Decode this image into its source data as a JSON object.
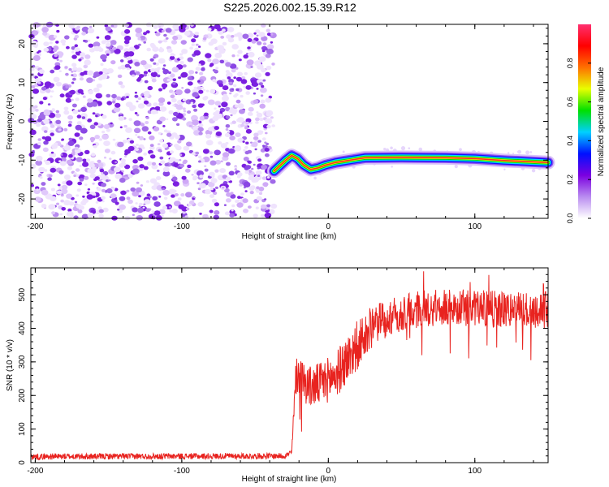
{
  "title": "S225.2026.002.15.39.R12",
  "chart_data": [
    {
      "type": "heatmap",
      "xlabel": "Height of straight line (km)",
      "ylabel": "Frequency (Hz)",
      "xlim": [
        -203,
        150
      ],
      "ylim": [
        -25,
        25
      ],
      "xticks": [
        -200,
        -100,
        0,
        100
      ],
      "yticks": [
        20,
        10,
        0,
        -10,
        -20
      ],
      "noise_region_x": [
        -203,
        -37
      ],
      "noise_amplitude_range": [
        0.0,
        0.2
      ],
      "ridge_points": [
        {
          "x": -37,
          "y": -12.8
        },
        {
          "x": -33,
          "y": -11.4
        },
        {
          "x": -29,
          "y": -10.0
        },
        {
          "x": -25,
          "y": -8.8
        },
        {
          "x": -21,
          "y": -9.6
        },
        {
          "x": -17,
          "y": -11.2
        },
        {
          "x": -12,
          "y": -12.4
        },
        {
          "x": -7,
          "y": -12.0
        },
        {
          "x": -2,
          "y": -11.3
        },
        {
          "x": 5,
          "y": -10.6
        },
        {
          "x": 15,
          "y": -10.0
        },
        {
          "x": 25,
          "y": -9.4
        },
        {
          "x": 50,
          "y": -9.3
        },
        {
          "x": 80,
          "y": -9.4
        },
        {
          "x": 100,
          "y": -9.6
        },
        {
          "x": 120,
          "y": -10.1
        },
        {
          "x": 150,
          "y": -10.6
        }
      ],
      "ridge_peak_amplitude": 0.95
    },
    {
      "type": "line",
      "xlabel": "Height of straight line (km)",
      "ylabel": "SNR (10 * v/v)",
      "xlim": [
        -203,
        150
      ],
      "ylim": [
        0,
        580
      ],
      "xticks": [
        -200,
        -100,
        0,
        100
      ],
      "yticks": [
        0,
        100,
        200,
        300,
        400,
        500
      ],
      "series_color": "#e8231f",
      "envelope": [
        {
          "x": -203,
          "y": 18
        },
        {
          "x": -30,
          "y": 20
        },
        {
          "x": -25,
          "y": 30
        },
        {
          "x": -22,
          "y": 260
        },
        {
          "x": -17,
          "y": 245
        },
        {
          "x": -12,
          "y": 225
        },
        {
          "x": -5,
          "y": 235
        },
        {
          "x": 5,
          "y": 260
        },
        {
          "x": 15,
          "y": 320
        },
        {
          "x": 25,
          "y": 385
        },
        {
          "x": 40,
          "y": 430
        },
        {
          "x": 60,
          "y": 455
        },
        {
          "x": 80,
          "y": 465
        },
        {
          "x": 100,
          "y": 460
        },
        {
          "x": 120,
          "y": 455
        },
        {
          "x": 150,
          "y": 455
        }
      ],
      "noise_amplitude": [
        {
          "x": -203,
          "y": 9
        },
        {
          "x": -25,
          "y": 9
        },
        {
          "x": -22,
          "y": 60
        },
        {
          "x": 20,
          "y": 75
        },
        {
          "x": 40,
          "y": 55
        },
        {
          "x": 150,
          "y": 55
        }
      ],
      "max_y": 575
    }
  ],
  "colorbar": {
    "label": "Normalized spectral amplitude",
    "range": [
      0,
      1
    ],
    "ticks": [
      0.0,
      0.2,
      0.4,
      0.6,
      0.8
    ],
    "tick_labels": [
      "0.0",
      "0.2",
      "0.4",
      "0.6",
      "0.8"
    ],
    "colors": [
      "#ffffff",
      "#b98cf0",
      "#7b00e0",
      "#0010ff",
      "#00d0ff",
      "#00e000",
      "#e8ff00",
      "#ff7000",
      "#ff0000",
      "#ff3070"
    ]
  }
}
